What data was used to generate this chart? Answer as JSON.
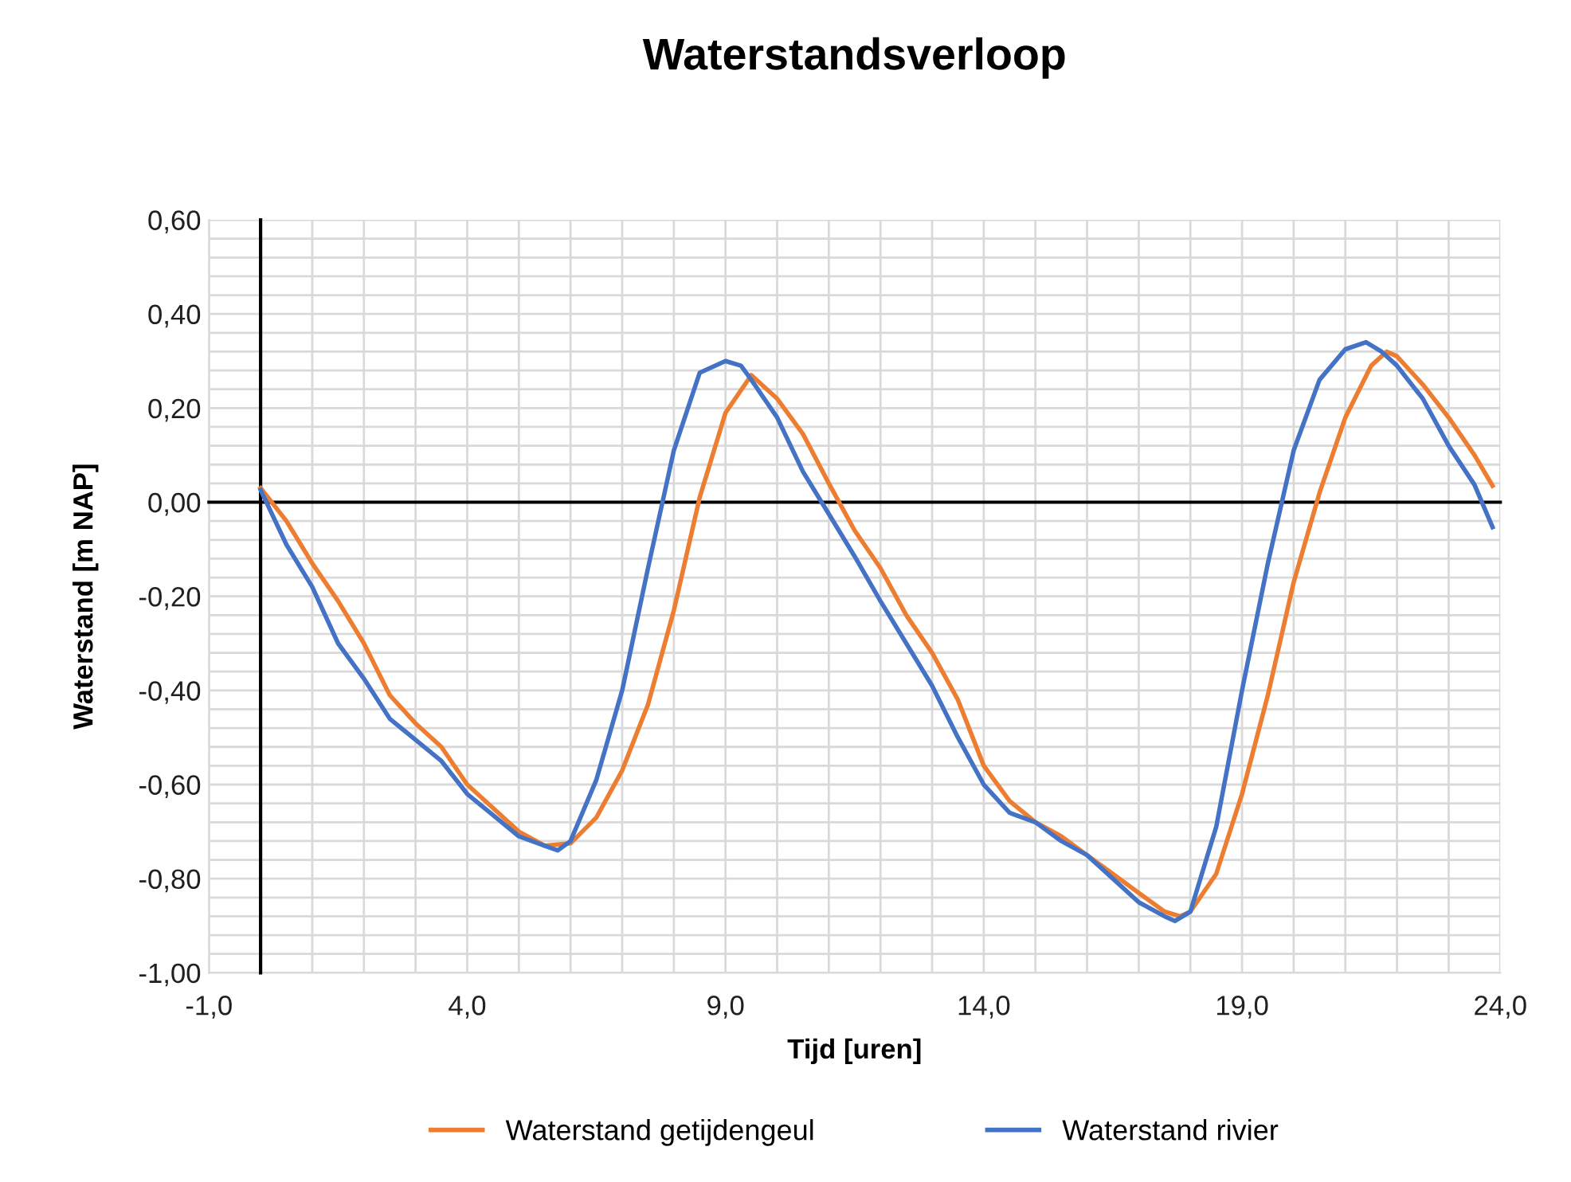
{
  "chart_data": {
    "type": "line",
    "title": "Waterstandsverloop",
    "xlabel": "Tijd [uren]",
    "ylabel": "Waterstand [m NAP]",
    "xlim": [
      -1,
      24
    ],
    "xticks": [
      {
        "value": -1,
        "label": "-1,0"
      },
      {
        "value": 0,
        "label": null
      },
      {
        "value": 1,
        "label": null
      },
      {
        "value": 2,
        "label": null
      },
      {
        "value": 3,
        "label": null
      },
      {
        "value": 4,
        "label": "4,0"
      },
      {
        "value": 5,
        "label": null
      },
      {
        "value": 6,
        "label": null
      },
      {
        "value": 7,
        "label": null
      },
      {
        "value": 8,
        "label": null
      },
      {
        "value": 9,
        "label": "9,0"
      },
      {
        "value": 10,
        "label": null
      },
      {
        "value": 11,
        "label": null
      },
      {
        "value": 12,
        "label": null
      },
      {
        "value": 13,
        "label": null
      },
      {
        "value": 14,
        "label": "14,0"
      },
      {
        "value": 15,
        "label": null
      },
      {
        "value": 16,
        "label": null
      },
      {
        "value": 17,
        "label": null
      },
      {
        "value": 18,
        "label": null
      },
      {
        "value": 19,
        "label": "19,0"
      },
      {
        "value": 20,
        "label": null
      },
      {
        "value": 21,
        "label": null
      },
      {
        "value": 22,
        "label": null
      },
      {
        "value": 23,
        "label": null
      },
      {
        "value": 24,
        "label": "24,0"
      }
    ],
    "ylim": [
      -1.0,
      0.6
    ],
    "yticks": [
      {
        "value": -1.0,
        "label": "-1,00"
      },
      {
        "value": -0.96,
        "label": null
      },
      {
        "value": -0.92,
        "label": null
      },
      {
        "value": -0.88,
        "label": null
      },
      {
        "value": -0.84,
        "label": null
      },
      {
        "value": -0.8,
        "label": "-0,80"
      },
      {
        "value": -0.76,
        "label": null
      },
      {
        "value": -0.72,
        "label": null
      },
      {
        "value": -0.68,
        "label": null
      },
      {
        "value": -0.64,
        "label": null
      },
      {
        "value": -0.6,
        "label": "-0,60"
      },
      {
        "value": -0.56,
        "label": null
      },
      {
        "value": -0.52,
        "label": null
      },
      {
        "value": -0.48,
        "label": null
      },
      {
        "value": -0.44,
        "label": null
      },
      {
        "value": -0.4,
        "label": "-0,40"
      },
      {
        "value": -0.36,
        "label": null
      },
      {
        "value": -0.32,
        "label": null
      },
      {
        "value": -0.28,
        "label": null
      },
      {
        "value": -0.24,
        "label": null
      },
      {
        "value": -0.2,
        "label": "-0,20"
      },
      {
        "value": -0.16,
        "label": null
      },
      {
        "value": -0.12,
        "label": null
      },
      {
        "value": -0.08,
        "label": null
      },
      {
        "value": -0.04,
        "label": null
      },
      {
        "value": 0.0,
        "label": "0,00"
      },
      {
        "value": 0.04,
        "label": null
      },
      {
        "value": 0.08,
        "label": null
      },
      {
        "value": 0.12,
        "label": null
      },
      {
        "value": 0.16,
        "label": null
      },
      {
        "value": 0.2,
        "label": "0,20"
      },
      {
        "value": 0.24,
        "label": null
      },
      {
        "value": 0.28,
        "label": null
      },
      {
        "value": 0.32,
        "label": null
      },
      {
        "value": 0.36,
        "label": null
      },
      {
        "value": 0.4,
        "label": "0,40"
      },
      {
        "value": 0.44,
        "label": null
      },
      {
        "value": 0.48,
        "label": null
      },
      {
        "value": 0.52,
        "label": null
      },
      {
        "value": 0.56,
        "label": null
      },
      {
        "value": 0.6,
        "label": "0,60"
      }
    ],
    "grid": true,
    "legend": "bottom",
    "marker": "none",
    "line_style": "solid",
    "series": [
      {
        "name": "Waterstand getijdengeul",
        "color": "#ed7d31",
        "x": [
          0,
          0.5,
          1,
          1.5,
          2,
          2.5,
          3,
          3.5,
          4,
          4.5,
          5,
          5.5,
          6,
          6.5,
          7,
          7.5,
          8,
          8.5,
          9,
          9.5,
          10,
          10.5,
          11,
          11.5,
          12,
          12.5,
          13,
          13.5,
          14,
          14.5,
          15,
          15.5,
          16,
          16.5,
          17,
          17.5,
          17.8,
          18,
          18.5,
          19,
          19.5,
          20,
          20.5,
          21,
          21.5,
          21.8,
          22,
          22.5,
          23,
          23.5,
          23.85
        ],
        "values": [
          0.03,
          -0.04,
          -0.13,
          -0.21,
          -0.3,
          -0.41,
          -0.47,
          -0.52,
          -0.6,
          -0.65,
          -0.7,
          -0.73,
          -0.725,
          -0.67,
          -0.57,
          -0.43,
          -0.23,
          0.01,
          0.19,
          0.27,
          0.22,
          0.145,
          0.04,
          -0.06,
          -0.14,
          -0.24,
          -0.32,
          -0.42,
          -0.56,
          -0.635,
          -0.68,
          -0.71,
          -0.75,
          -0.79,
          -0.83,
          -0.87,
          -0.88,
          -0.87,
          -0.79,
          -0.62,
          -0.41,
          -0.17,
          0.02,
          0.18,
          0.29,
          0.32,
          0.31,
          0.25,
          0.18,
          0.1,
          0.035
        ]
      },
      {
        "name": "Waterstand rivier",
        "color": "#4472c4",
        "x": [
          0,
          0.5,
          1,
          1.5,
          2,
          2.5,
          3,
          3.5,
          4,
          4.5,
          5,
          5.5,
          5.75,
          6,
          6.5,
          7,
          7.5,
          8,
          8.5,
          9,
          9.3,
          9.5,
          10,
          10.5,
          11,
          11.5,
          12,
          12.5,
          13,
          13.5,
          14,
          14.5,
          15,
          15.5,
          16,
          16.5,
          17,
          17.5,
          17.7,
          18,
          18.5,
          19,
          19.5,
          20,
          20.5,
          21,
          21.4,
          21.7,
          22,
          22.5,
          23,
          23.5,
          23.85
        ],
        "values": [
          0.026,
          -0.09,
          -0.18,
          -0.3,
          -0.375,
          -0.46,
          -0.505,
          -0.55,
          -0.62,
          -0.665,
          -0.71,
          -0.73,
          -0.74,
          -0.72,
          -0.59,
          -0.4,
          -0.14,
          0.11,
          0.275,
          0.3,
          0.29,
          0.26,
          0.18,
          0.065,
          -0.025,
          -0.115,
          -0.21,
          -0.3,
          -0.39,
          -0.5,
          -0.6,
          -0.66,
          -0.68,
          -0.72,
          -0.75,
          -0.8,
          -0.85,
          -0.88,
          -0.89,
          -0.87,
          -0.69,
          -0.4,
          -0.13,
          0.11,
          0.26,
          0.325,
          0.34,
          0.32,
          0.29,
          0.22,
          0.12,
          0.037,
          -0.053
        ]
      }
    ]
  }
}
